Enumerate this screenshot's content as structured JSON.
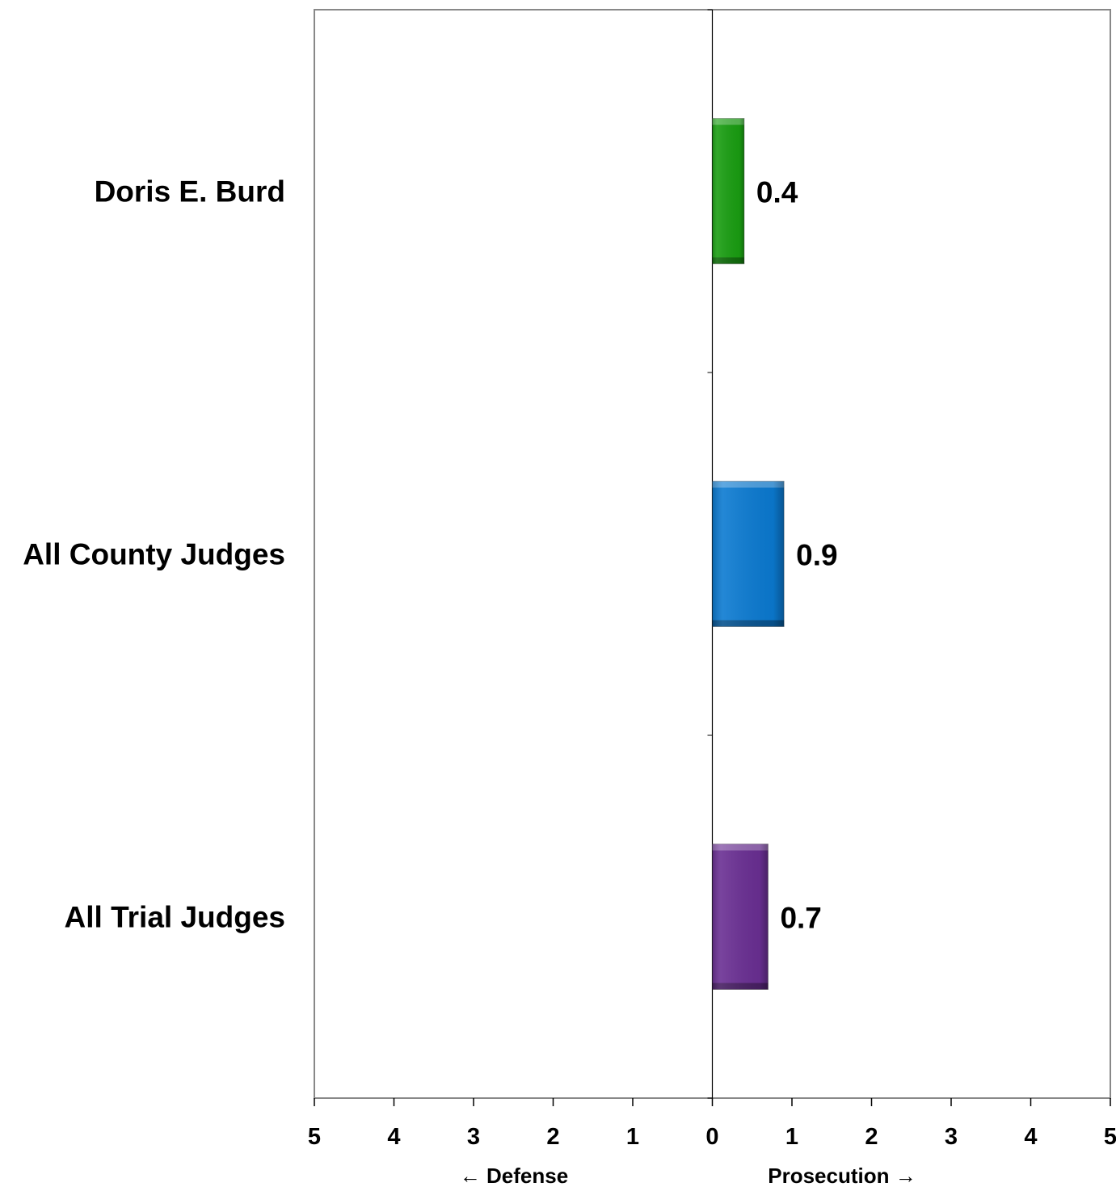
{
  "chart_data": {
    "type": "bar",
    "orientation": "horizontal",
    "categories": [
      "Doris E. Burd",
      "All County Judges",
      "All Trial Judges"
    ],
    "values": [
      0.4,
      0.9,
      0.7
    ],
    "value_labels": [
      "0.4",
      "0.9",
      "0.7"
    ],
    "colors": [
      "#1a9e12",
      "#0b7ad1",
      "#6a2f93"
    ],
    "xlim": [
      -5,
      5
    ],
    "x_ticks": [
      -5,
      -4,
      -3,
      -2,
      -1,
      0,
      1,
      2,
      3,
      4,
      5
    ],
    "x_tick_labels": [
      "5",
      "4",
      "3",
      "2",
      "1",
      "0",
      "1",
      "2",
      "3",
      "4",
      "5"
    ],
    "direction_labels": {
      "left": "← Defense",
      "right": "Prosecution →"
    },
    "grid": false,
    "legend": "none"
  }
}
